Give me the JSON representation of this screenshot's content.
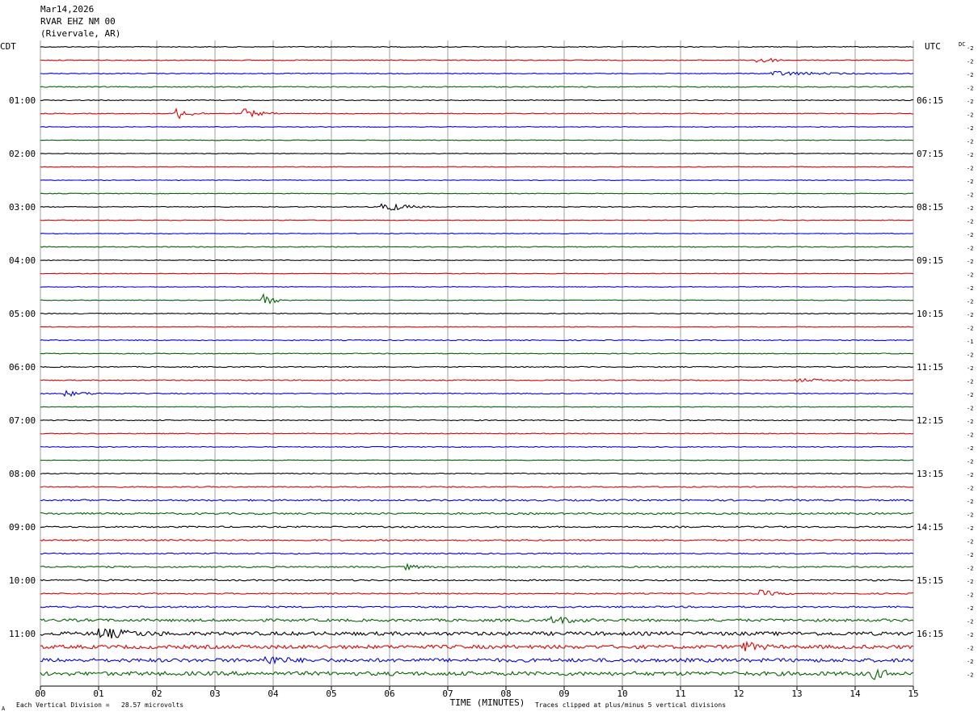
{
  "header": {
    "date": "Mar14,2026",
    "station": "RVAR EHZ NM 00",
    "location": "(Rivervale, AR)",
    "left_tz": "CDT",
    "right_tz": "UTC",
    "dc_label": "DC"
  },
  "footer": {
    "axis_title": "TIME (MINUTES)",
    "scale_note": "Each Vertical Division =   28.57 microvolts",
    "clip_note": "Traces clipped at plus/minus 5 vertical divisions"
  },
  "colors": {
    "cycle": [
      "#000000",
      "#e00000",
      "#0000e0",
      "#006400"
    ],
    "grid": "#888888"
  },
  "chart_data": {
    "type": "line",
    "x_label": "TIME (MINUTES)",
    "x_range": [
      0,
      15
    ],
    "x_ticks": [
      "00",
      "01",
      "02",
      "03",
      "04",
      "05",
      "06",
      "07",
      "08",
      "09",
      "10",
      "11",
      "12",
      "13",
      "14",
      "15"
    ],
    "trace_minutes": 15,
    "rows": 48,
    "left_hour_labels": [
      {
        "row": 4,
        "label": "01:00"
      },
      {
        "row": 8,
        "label": "02:00"
      },
      {
        "row": 12,
        "label": "03:00"
      },
      {
        "row": 16,
        "label": "04:00"
      },
      {
        "row": 20,
        "label": "05:00"
      },
      {
        "row": 24,
        "label": "06:00"
      },
      {
        "row": 28,
        "label": "07:00"
      },
      {
        "row": 32,
        "label": "08:00"
      },
      {
        "row": 36,
        "label": "09:00"
      },
      {
        "row": 40,
        "label": "10:00"
      },
      {
        "row": 44,
        "label": "11:00"
      }
    ],
    "right_hour_labels": [
      {
        "row": 4,
        "label": "06:15"
      },
      {
        "row": 8,
        "label": "07:15"
      },
      {
        "row": 12,
        "label": "08:15"
      },
      {
        "row": 16,
        "label": "09:15"
      },
      {
        "row": 20,
        "label": "10:15"
      },
      {
        "row": 24,
        "label": "11:15"
      },
      {
        "row": 28,
        "label": "12:15"
      },
      {
        "row": 32,
        "label": "13:15"
      },
      {
        "row": 36,
        "label": "14:15"
      },
      {
        "row": 40,
        "label": "15:15"
      },
      {
        "row": 44,
        "label": "16:15"
      }
    ],
    "dc_offsets": [
      "-2",
      "-2",
      "-2",
      "-2",
      "-2",
      "-2",
      "-2",
      "-2",
      "-2",
      "-2",
      "-2",
      "-2",
      "-2",
      "-2",
      "-2",
      "-2",
      "-2",
      "-2",
      "-2",
      "-2",
      "-2",
      "-2",
      "-1",
      "-2",
      "-2",
      "-2",
      "-2",
      "-2",
      "-2",
      "-2",
      "-2",
      "-2",
      "-2",
      "-2",
      "-2",
      "-2",
      "-2",
      "-2",
      "-2",
      "-2",
      "-2",
      "-2",
      "-2",
      "-2",
      "-2",
      "-2",
      "-2",
      "-2"
    ],
    "row_noise": [
      0.5,
      0.5,
      0.5,
      0.6,
      0.5,
      0.5,
      0.4,
      0.4,
      0.4,
      0.4,
      0.4,
      0.4,
      0.5,
      0.4,
      0.4,
      0.5,
      0.4,
      0.4,
      0.4,
      0.4,
      0.5,
      0.4,
      0.6,
      0.5,
      0.6,
      0.6,
      0.6,
      0.4,
      0.6,
      0.5,
      0.5,
      0.4,
      0.6,
      0.7,
      1.0,
      1.1,
      0.9,
      0.9,
      0.8,
      0.9,
      0.9,
      0.8,
      1.0,
      1.6,
      2.2,
      2.2,
      2.2,
      2.4
    ],
    "events": [
      {
        "row": 1,
        "minute": 12.35,
        "amplitude": 7,
        "duration": 0.5
      },
      {
        "row": 2,
        "minute": 12.6,
        "amplitude": 3,
        "duration": 2.0
      },
      {
        "row": 5,
        "minute": 2.35,
        "amplitude": 7,
        "duration": 0.6
      },
      {
        "row": 5,
        "minute": 3.5,
        "amplitude": 6,
        "duration": 0.7
      },
      {
        "row": 12,
        "minute": 5.9,
        "amplitude": 8,
        "duration": 0.8
      },
      {
        "row": 19,
        "minute": 3.85,
        "amplitude": 7,
        "duration": 0.5
      },
      {
        "row": 26,
        "minute": 0.45,
        "amplitude": 3,
        "duration": 1.0
      },
      {
        "row": 25,
        "minute": 13.0,
        "amplitude": 2,
        "duration": 1.5
      },
      {
        "row": 39,
        "minute": 6.3,
        "amplitude": 3,
        "duration": 0.5
      },
      {
        "row": 41,
        "minute": 12.4,
        "amplitude": 4,
        "duration": 0.6
      },
      {
        "row": 43,
        "minute": 8.8,
        "amplitude": 5,
        "duration": 0.8
      },
      {
        "row": 44,
        "minute": 1.0,
        "amplitude": 6,
        "duration": 1.4
      },
      {
        "row": 45,
        "minute": 12.1,
        "amplitude": 6,
        "duration": 0.6
      },
      {
        "row": 46,
        "minute": 3.9,
        "amplitude": 5,
        "duration": 0.8
      },
      {
        "row": 47,
        "minute": 14.3,
        "amplitude": 6,
        "duration": 0.6
      }
    ]
  }
}
